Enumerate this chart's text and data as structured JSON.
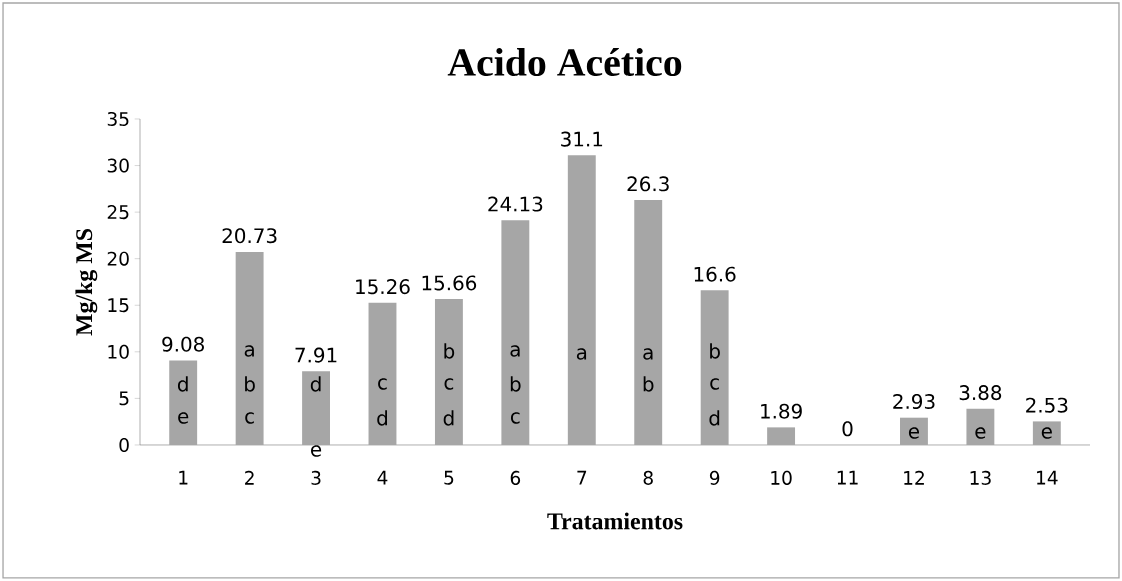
{
  "chart_data": {
    "type": "bar",
    "title": "Acido Acético",
    "xlabel": "Tratamientos",
    "ylabel": "Mg/kg MS",
    "x": [
      1,
      2,
      3,
      4,
      5,
      6,
      7,
      8,
      9,
      10,
      11,
      12,
      13,
      14
    ],
    "values": [
      9.08,
      20.73,
      7.91,
      15.26,
      15.66,
      24.13,
      31.1,
      26.3,
      16.6,
      1.89,
      0,
      2.93,
      3.88,
      2.53
    ],
    "color": "#a6a6a6",
    "value_labels": [
      "9.08",
      "20.73",
      "7.91",
      "15.26",
      "15.66",
      "24.13",
      "31.1",
      "26.3",
      "16.6",
      "1.89",
      "0",
      "2.93",
      "3.88",
      "2.53"
    ],
    "xlim": [
      0.35,
      14.65
    ],
    "xticks": [
      1,
      2,
      3,
      4,
      5,
      6,
      7,
      8,
      9,
      10,
      11,
      12,
      13,
      14
    ],
    "ylim": [
      0,
      35
    ],
    "yticks": [
      0,
      5,
      10,
      15,
      20,
      25,
      30,
      35
    ],
    "grid": false,
    "annotations": [
      "d",
      "e",
      "a",
      "b",
      "c",
      "d",
      "e",
      "c",
      "d",
      "b",
      "c",
      "d",
      "a",
      "b",
      "c",
      "a",
      "a",
      "b",
      "b",
      "c",
      "d",
      "e",
      "e",
      "e"
    ]
  }
}
